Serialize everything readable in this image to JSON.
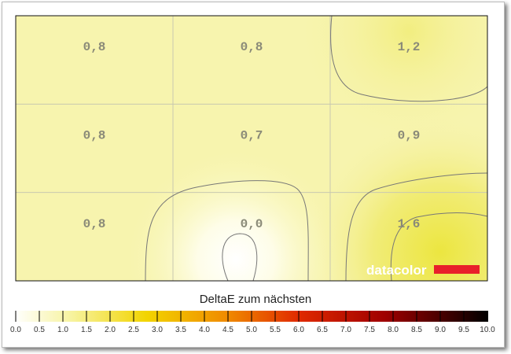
{
  "chart_data": {
    "type": "heatmap",
    "title": "DeltaE zum nächsten",
    "rows": 3,
    "cols": 3,
    "values": [
      [
        "0,8",
        "0,8",
        "1,2"
      ],
      [
        "0,8",
        "0,7",
        "0,9"
      ],
      [
        "0,8",
        "0,0",
        "1,6"
      ]
    ],
    "colorbar": {
      "range": [
        0,
        10
      ],
      "ticks": [
        "0.0",
        "0.5",
        "1.0",
        "1.5",
        "2.0",
        "2.5",
        "3.0",
        "3.5",
        "4.0",
        "4.5",
        "5.0",
        "5.5",
        "6.0",
        "6.5",
        "7.0",
        "7.5",
        "8.0",
        "8.5",
        "9.0",
        "9.5",
        "10.0"
      ],
      "colors": [
        "#ffffff",
        "#f7f3a0",
        "#f2d400",
        "#f08a00",
        "#e02a00",
        "#a00000",
        "#000000"
      ]
    },
    "contours": true,
    "grid": true
  },
  "logo": {
    "text": "datacolor",
    "color": "#e8202a"
  }
}
